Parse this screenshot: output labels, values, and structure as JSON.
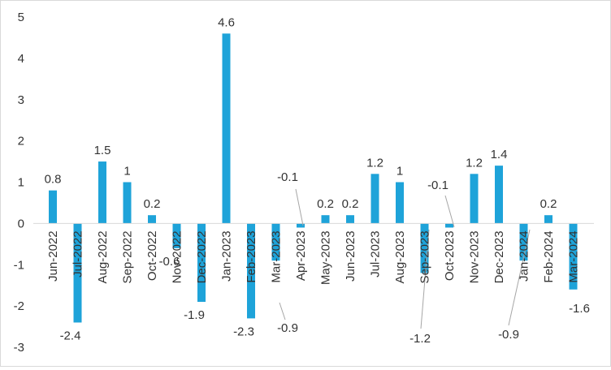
{
  "chart_data": {
    "type": "bar",
    "title": "",
    "xlabel": "",
    "ylabel": "",
    "ylim": [
      -3,
      5
    ],
    "yticks": [
      -3,
      -2,
      -1,
      0,
      1,
      2,
      3,
      4,
      5
    ],
    "grid": false,
    "legend": "none",
    "bar_color": "#1ea3d9",
    "label_color": "#333333",
    "leader_line_color": "#a6a6a6",
    "categories": [
      "Jun-2022",
      "Jul-2022",
      "Aug-2022",
      "Sep-2022",
      "Oct-2022",
      "Nov-2022",
      "Dec-2022",
      "Jan-2023",
      "Feb-2023",
      "Mar-2023",
      "Apr-2023",
      "May-2023",
      "Jun-2023",
      "Jul-2023",
      "Aug-2023",
      "Sep-2023",
      "Oct-2023",
      "Nov-2023",
      "Dec-2023",
      "Jan-2024",
      "Feb-2024",
      "Mar-2024"
    ],
    "values": [
      0.8,
      -2.4,
      1.5,
      1,
      0.2,
      -0.6,
      -1.9,
      4.6,
      -2.3,
      -0.9,
      -0.1,
      0.2,
      0.2,
      1.2,
      1,
      -1.2,
      -0.1,
      1.2,
      1.4,
      -0.9,
      0.2,
      -1.6
    ],
    "data_labels": [
      "0.8",
      "-2.4",
      "1.5",
      "1",
      "0.2",
      "-0.6",
      "-1.9",
      "4.6",
      "-2.3",
      "-0.9",
      "-0.1",
      "0.2",
      "0.2",
      "1.2",
      "1",
      "-1.2",
      "-0.1",
      "1.2",
      "1.4",
      "-0.9",
      "0.2",
      "-1.6"
    ]
  }
}
